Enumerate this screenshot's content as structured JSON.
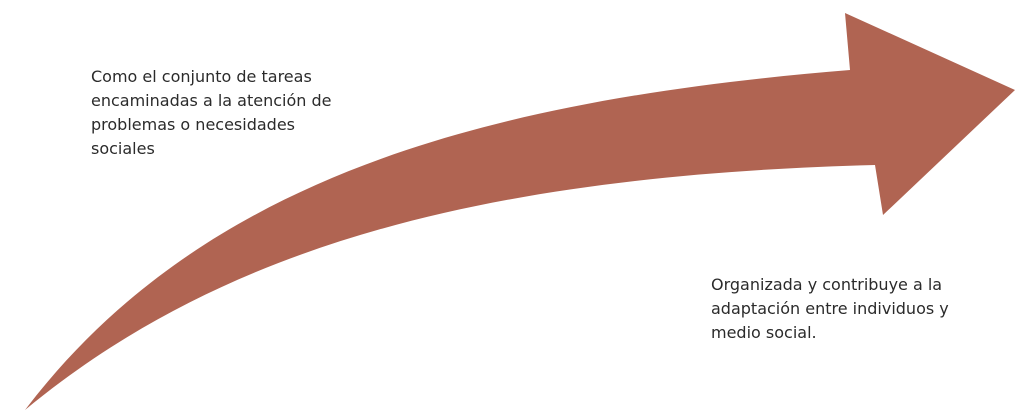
{
  "diagram": {
    "arrow_color": "#b06452",
    "left_text": "Como el conjunto de tareas\nencaminadas a la atención de\nproblemas o necesidades\nsociales",
    "right_text": "Organizada y contribuye a la\nadaptación entre individuos y\nmedio social."
  }
}
